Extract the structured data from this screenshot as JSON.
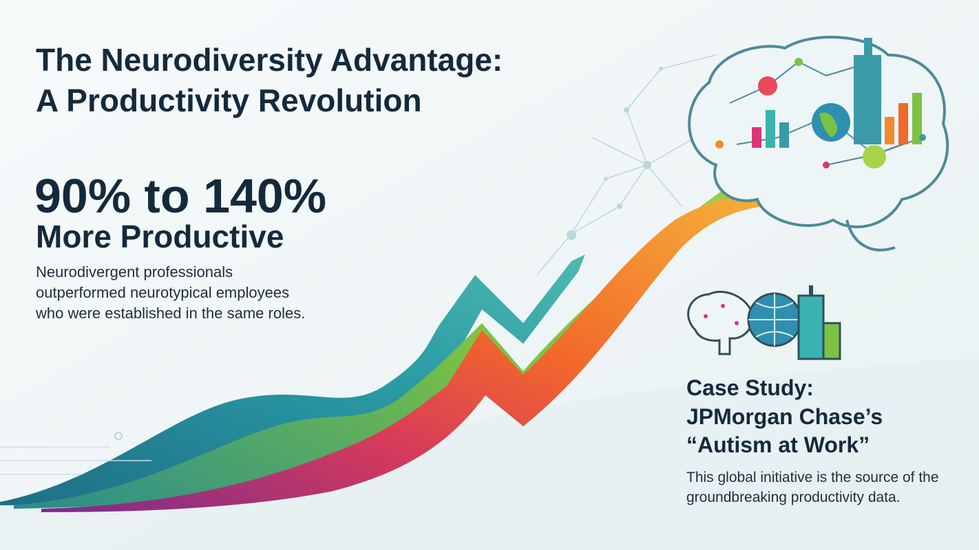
{
  "header": {
    "title_lines": [
      "The Neurodiversity Advantage:",
      "A Productivity Revolution"
    ]
  },
  "stat": {
    "headline": "90% to 140%",
    "subline": "More Productive",
    "description_lines": [
      "Neurodivergent professionals",
      "outperformed neurotypical employees",
      "who were established in the same roles."
    ]
  },
  "case_study": {
    "title_lines": [
      "Case Study:",
      "JPMorgan Chase’s",
      "“Autism at Work”"
    ],
    "description_lines": [
      "This global initiative is the source of the",
      "groundbreaking productivity data."
    ]
  }
}
